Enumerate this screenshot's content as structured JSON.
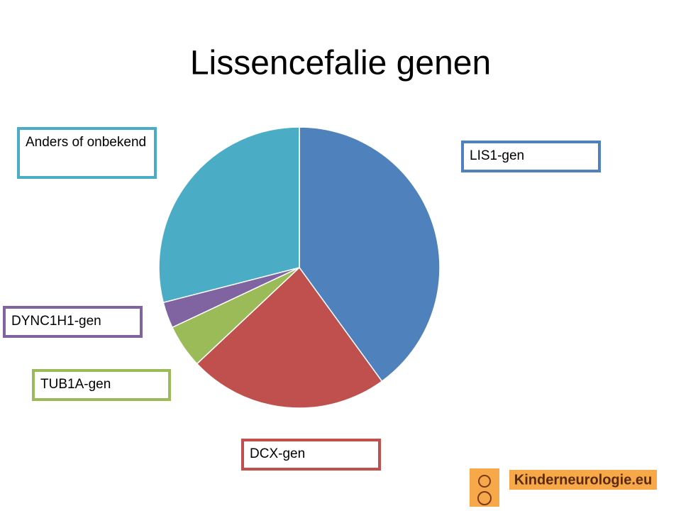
{
  "chart_data": {
    "type": "pie",
    "title": "Lissencefalie genen",
    "categories": [
      "LIS1-gen",
      "DCX-gen",
      "TUB1A-gen",
      "DYNC1H1-gen",
      "Anders of onbekend"
    ],
    "values": [
      40,
      23,
      5,
      3,
      29
    ],
    "colors": [
      "#4f81bd",
      "#c0504d",
      "#9bbb59",
      "#8064a2",
      "#4bacc6"
    ]
  },
  "logo": {
    "text": "Kinderneurologie.eu"
  }
}
